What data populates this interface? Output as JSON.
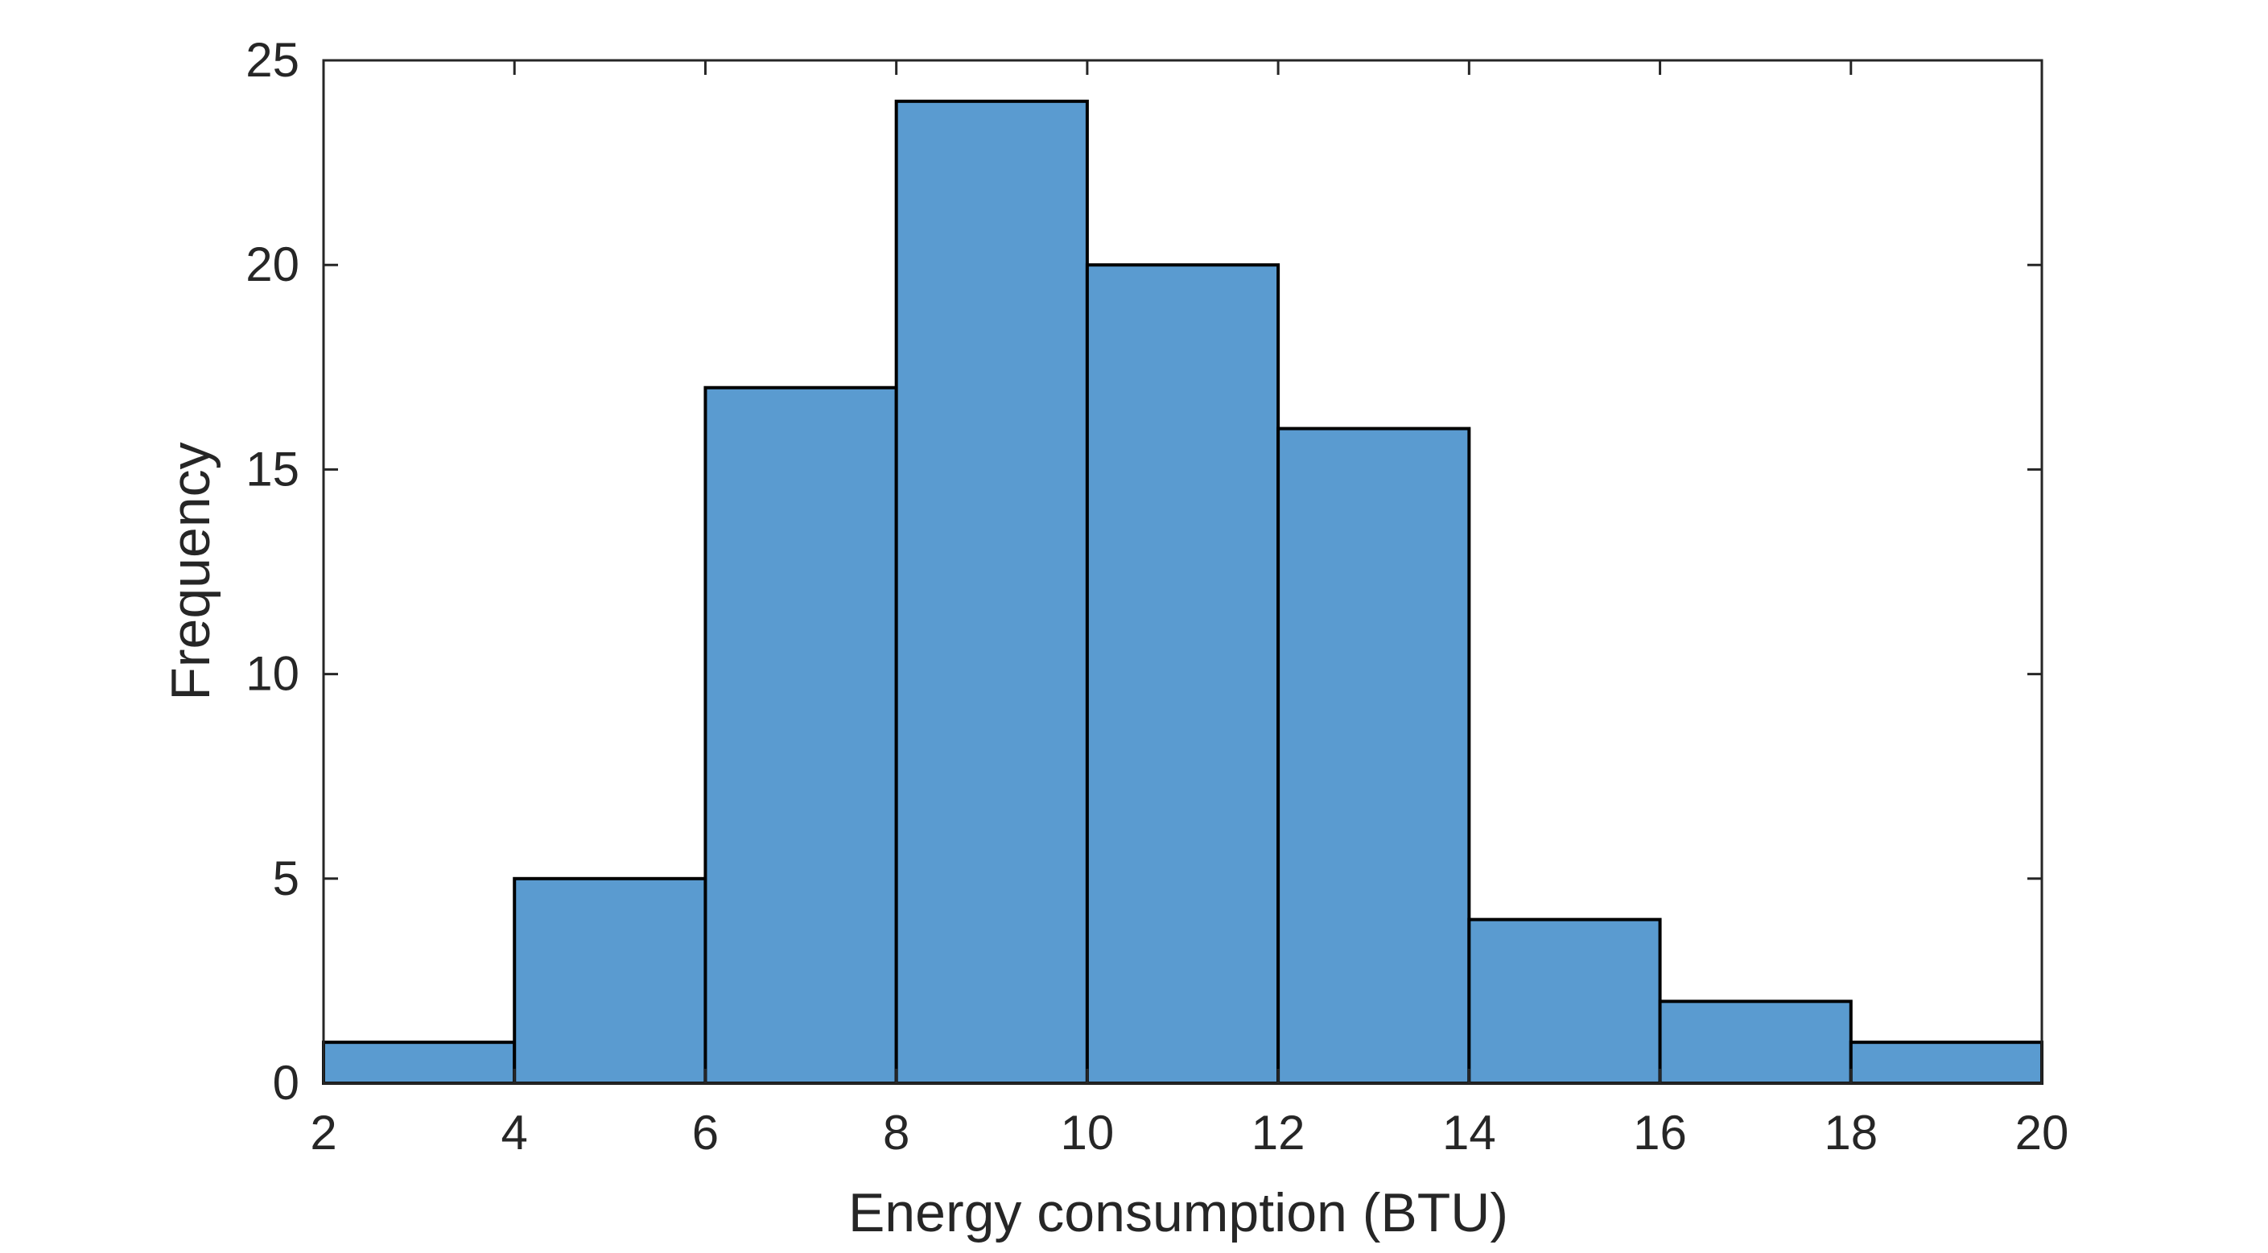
{
  "chart_data": {
    "type": "bar",
    "subtype": "histogram",
    "title": "",
    "xlabel": "Energy consumption (BTU)",
    "ylabel": "Frequency",
    "bin_edges": [
      2,
      4,
      6,
      8,
      10,
      12,
      14,
      16,
      18,
      20
    ],
    "values": [
      1,
      5,
      17,
      24,
      20,
      16,
      4,
      2,
      1
    ],
    "xlim": [
      2,
      20
    ],
    "ylim": [
      0,
      25
    ],
    "x_ticks": [
      2,
      4,
      6,
      8,
      10,
      12,
      14,
      16,
      18,
      20
    ],
    "y_ticks": [
      0,
      5,
      10,
      15,
      20,
      25
    ],
    "x_tick_labels": [
      "2",
      "4",
      "6",
      "8",
      "10",
      "12",
      "14",
      "16",
      "18",
      "20"
    ],
    "y_tick_labels": [
      "0",
      "5",
      "10",
      "15",
      "20",
      "25"
    ],
    "grid": false,
    "legend": "none",
    "colors": {
      "bar_fill": "#5a9bd0",
      "bar_edge": "#000000",
      "axis": "#262626",
      "text": "#262626",
      "background": "#ffffff"
    }
  }
}
